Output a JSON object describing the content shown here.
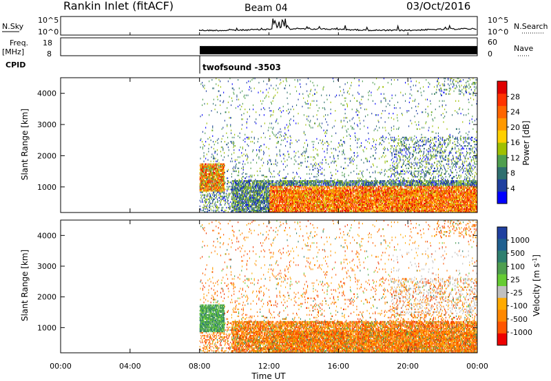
{
  "header": {
    "station": "Rankin Inlet (fitACF)",
    "beam": "Beam 04",
    "date": "03/Oct/2016"
  },
  "nsky_panel": {
    "label": "N.Sky",
    "left_ticks": [
      "10^5",
      "10^0"
    ],
    "right_ticks": [
      "10^5",
      "10^0"
    ],
    "right_label": "N.Search"
  },
  "freq_panel": {
    "label_line1": "Freq.",
    "label_line2": "[MHz]",
    "left_ticks": [
      "18",
      "8"
    ],
    "right_ticks": [
      "60",
      "0"
    ],
    "right_label": "Nave"
  },
  "cpid": {
    "label": "CPID",
    "program": "twofsound -3503"
  },
  "colors": {
    "power": [
      "#0000ff",
      "#1f3f9f",
      "#2e6f6f",
      "#4f9f4f",
      "#a0c000",
      "#ffd000",
      "#ff9900",
      "#ff6600",
      "#ff3300",
      "#e00000"
    ],
    "velocity_pos": [
      "#2040a0",
      "#2e6f6f",
      "#4f9f4f",
      "#66cc33"
    ],
    "velocity_neg": [
      "#c0c0c0",
      "#ffaa00",
      "#ff7700",
      "#ff4400",
      "#ee0000"
    ]
  },
  "chart_data": [
    {
      "type": "heatmap",
      "name": "power",
      "ylabel": "Slant Range [km]",
      "yticks": [
        "1000",
        "2000",
        "3000",
        "4000"
      ],
      "ylim": [
        180,
        4500
      ],
      "xlim_hours": [
        0,
        24
      ],
      "colorbar": {
        "label": "Power [dB]",
        "ticks": [
          "4",
          "8",
          "12",
          "16",
          "20",
          "24",
          "28"
        ]
      },
      "data_start_ut": "08:00",
      "features": "scatter mostly below 1200 km after 10:00 UT; patch 900-1700 km at 08:00-09:30"
    },
    {
      "type": "heatmap",
      "name": "velocity",
      "ylabel": "Slant Range [km]",
      "yticks": [
        "1000",
        "2000",
        "3000",
        "4000"
      ],
      "ylim": [
        180,
        4500
      ],
      "xlim_hours": [
        0,
        24
      ],
      "colorbar": {
        "label": "Velocity [m s^-1]",
        "ticks": [
          "1000",
          "500",
          "100",
          "25",
          "-25",
          "-100",
          "-500",
          "-1000"
        ]
      },
      "data_start_ut": "08:00"
    }
  ],
  "x_axis": {
    "ticks": [
      "00:00",
      "04:00",
      "08:00",
      "12:00",
      "16:00",
      "20:00",
      "00:00"
    ],
    "label": "Time UT"
  }
}
